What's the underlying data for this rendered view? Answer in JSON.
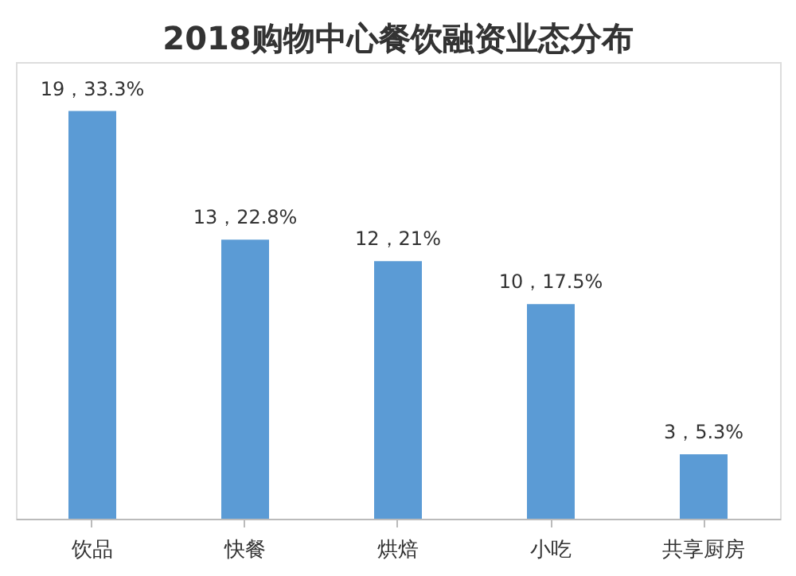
{
  "chart_data": {
    "type": "bar",
    "title": "2018购物中心餐饮融资业态分布",
    "categories": [
      "饮品",
      "快餐",
      "烘焙",
      "小吃",
      "共享厨房"
    ],
    "values": [
      19,
      13,
      12,
      10,
      3
    ],
    "value_labels": [
      "19，33.3%",
      "13，22.8%",
      "12，21%",
      "10，17.5%",
      "3，5.3%"
    ],
    "color": "#5b9bd5",
    "grid": false
  }
}
